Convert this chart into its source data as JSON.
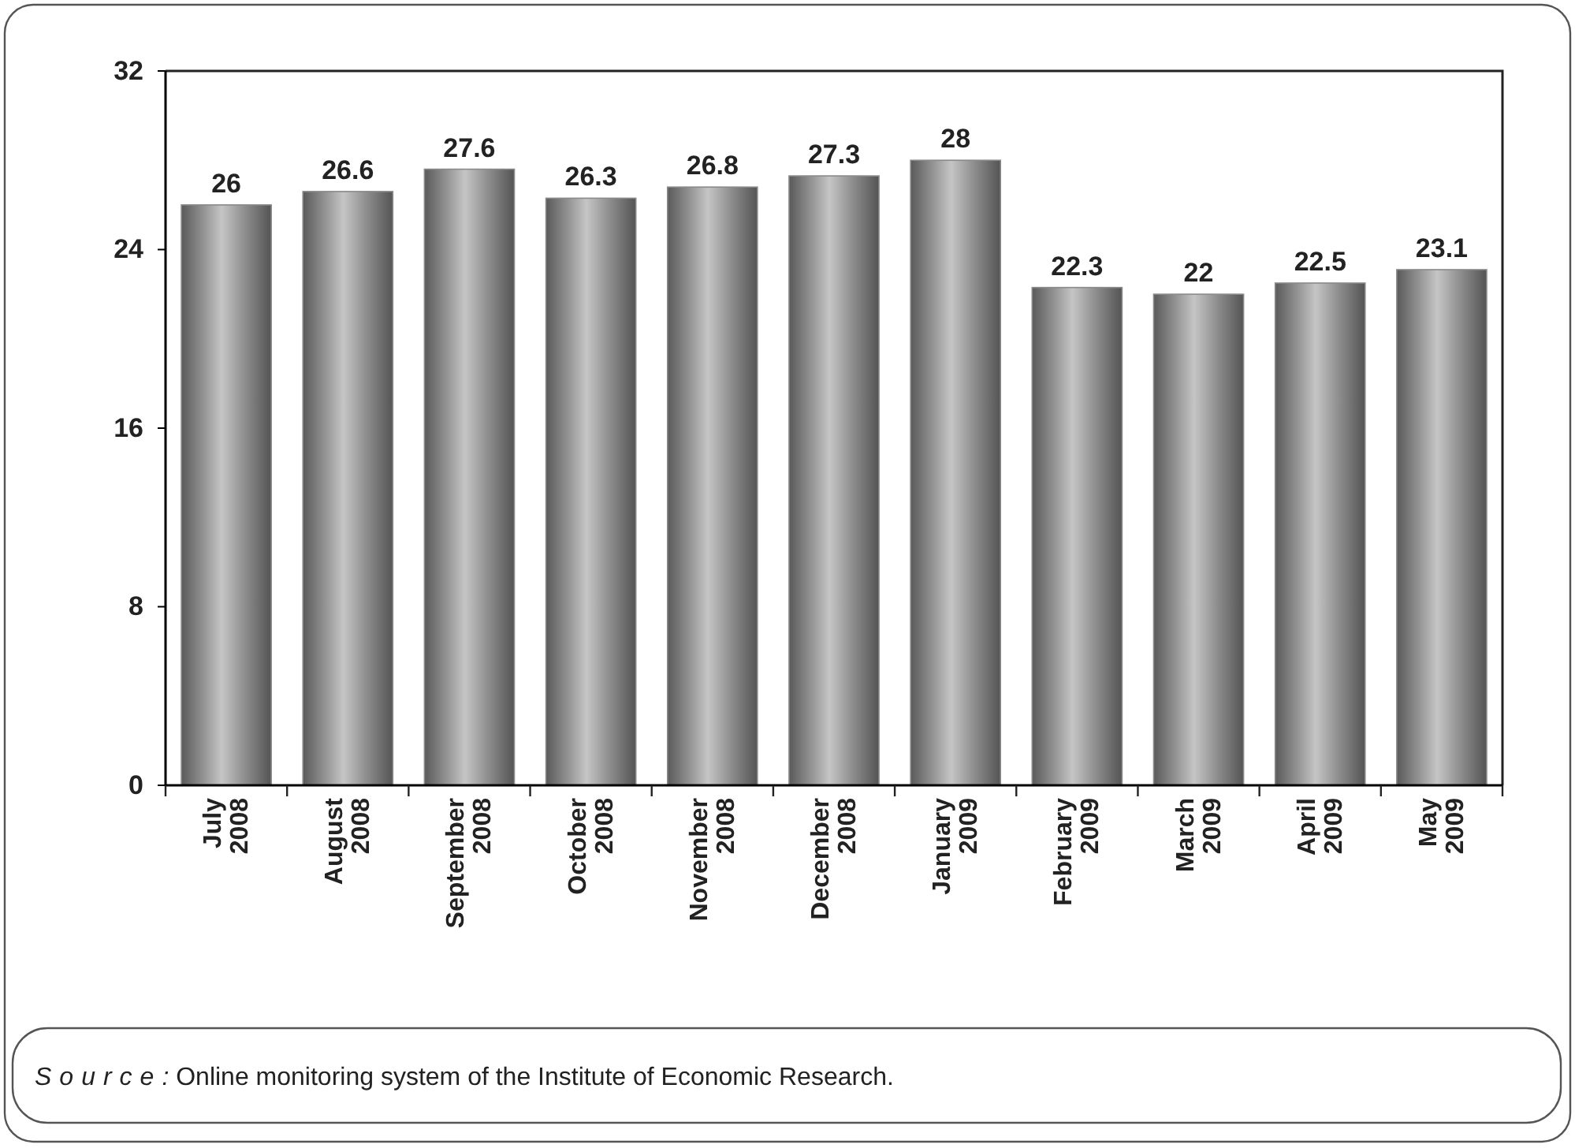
{
  "chart_data": {
    "type": "bar",
    "categories": [
      "July 2008",
      "August 2008",
      "September 2008",
      "October 2008",
      "November 2008",
      "December 2008",
      "January 2009",
      "February 2009",
      "March 2009",
      "April 2009",
      "May 2009"
    ],
    "values": [
      26,
      26.6,
      27.6,
      26.3,
      26.8,
      27.3,
      28,
      22.3,
      22,
      22.5,
      23.1
    ],
    "color": "#8a8a8a",
    "ylim": [
      0,
      32
    ],
    "yticks": [
      0,
      8,
      16,
      24,
      32
    ],
    "grid": false,
    "data_labels": true,
    "annotations": [
      "Source: Online monitoring system of the Institute of Economic Research."
    ]
  }
}
